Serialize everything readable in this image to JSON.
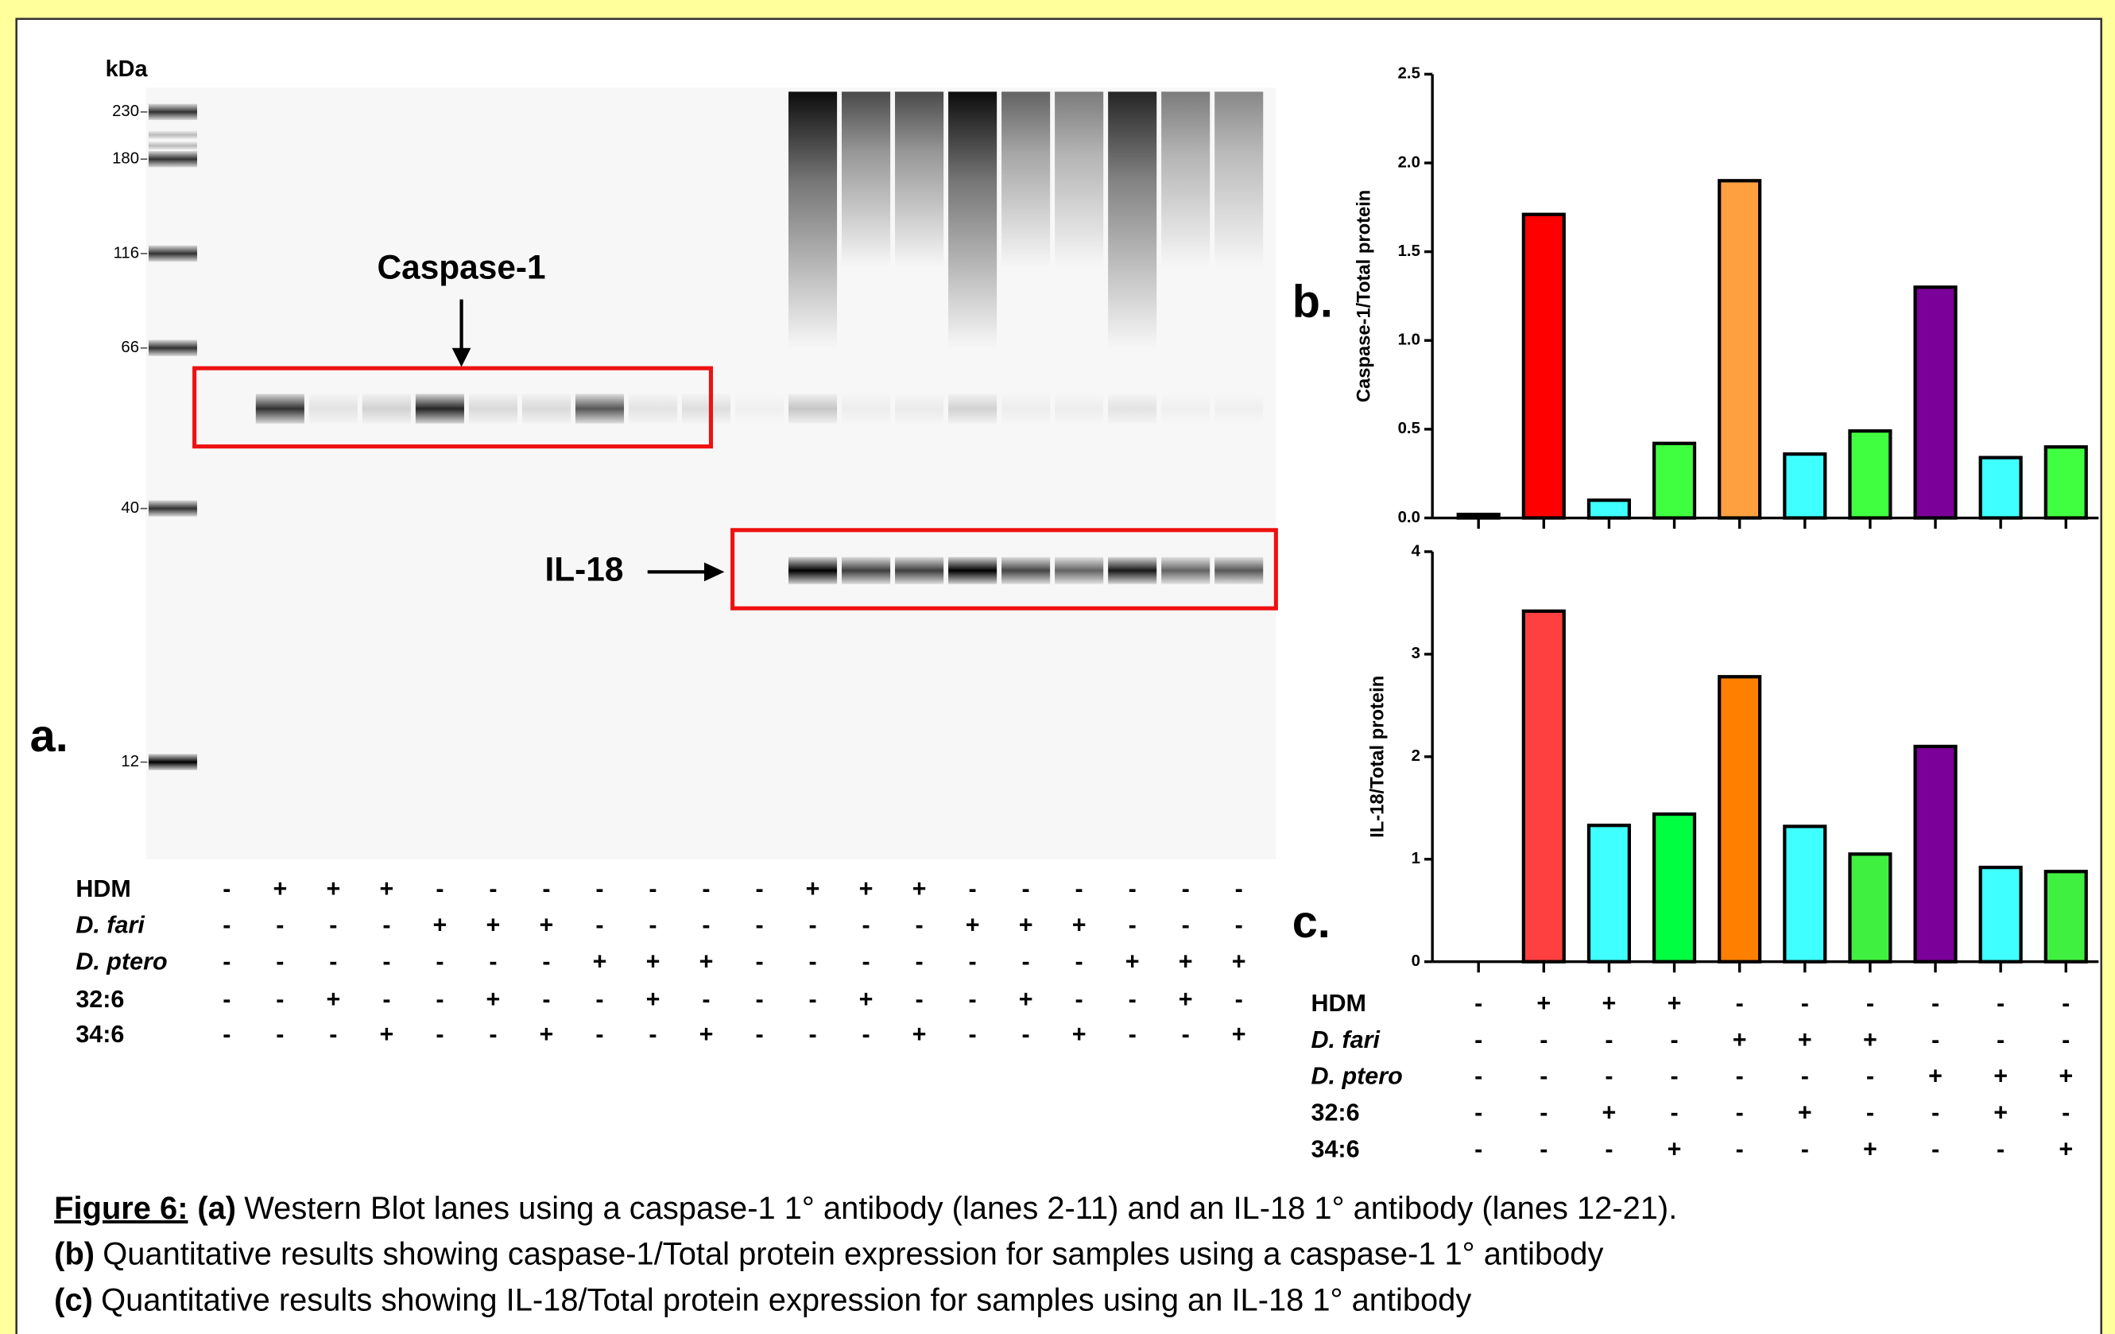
{
  "blot": {
    "unit_label": "kDa",
    "ladder": [
      "230",
      "180",
      "116",
      "66",
      "40",
      "12"
    ],
    "caspase_label": "Caspase-1",
    "il18_label": "IL-18",
    "panel_label": "a.",
    "conditions": [
      {
        "name": "HDM",
        "signs": [
          "-",
          "+",
          "+",
          "+",
          "-",
          "-",
          "-",
          "-",
          "-",
          "-",
          "-",
          "+",
          "+",
          "+",
          "-",
          "-",
          "-",
          "-",
          "-",
          "-"
        ]
      },
      {
        "name": "D. fari",
        "signs": [
          "-",
          "-",
          "-",
          "-",
          "+",
          "+",
          "+",
          "-",
          "-",
          "-",
          "-",
          "-",
          "-",
          "-",
          "+",
          "+",
          "+",
          "-",
          "-",
          "-"
        ]
      },
      {
        "name": "D. ptero",
        "signs": [
          "-",
          "-",
          "-",
          "-",
          "-",
          "-",
          "-",
          "+",
          "+",
          "+",
          "-",
          "-",
          "-",
          "-",
          "-",
          "-",
          "-",
          "+",
          "+",
          "+"
        ]
      },
      {
        "name": "32:6",
        "signs": [
          "-",
          "-",
          "+",
          "-",
          "-",
          "+",
          "-",
          "-",
          "+",
          "-",
          "-",
          "-",
          "+",
          "-",
          "-",
          "+",
          "-",
          "-",
          "+",
          "-"
        ]
      },
      {
        "name": "34:6",
        "signs": [
          "-",
          "-",
          "-",
          "+",
          "-",
          "-",
          "+",
          "-",
          "-",
          "+",
          "-",
          "-",
          "-",
          "+",
          "-",
          "-",
          "+",
          "-",
          "-",
          "+"
        ]
      }
    ]
  },
  "chart_data": [
    {
      "type": "bar",
      "panel_label": "b.",
      "y_label": "Caspase-1/Total protein",
      "categories": [
        null,
        null,
        null,
        null,
        null,
        null,
        null,
        null,
        null,
        null
      ],
      "values": [
        0.02,
        1.71,
        0.1,
        0.42,
        1.9,
        0.36,
        0.49,
        1.3,
        0.34,
        0.4
      ],
      "colors": [
        "#000000",
        "#ff0000",
        "#40ffff",
        "#40ff40",
        "#ffa040",
        "#40ffff",
        "#40ff40",
        "#7a0099",
        "#40ffff",
        "#40ff40"
      ],
      "ylim": [
        0,
        2.5
      ],
      "yticks": [
        {
          "value": 0,
          "label": "0.0"
        },
        0.5,
        {
          "value": 1,
          "label": "1.0"
        },
        1.5,
        {
          "value": 2,
          "label": "2.0"
        },
        2.5
      ]
    },
    {
      "type": "bar",
      "panel_label": "c.",
      "y_label": "IL-18/Total protein",
      "categories": [
        null,
        null,
        null,
        null,
        null,
        null,
        null,
        null,
        null,
        null
      ],
      "values": [
        0,
        3.42,
        1.33,
        1.44,
        2.78,
        1.32,
        1.05,
        2.1,
        0.92,
        0.88
      ],
      "colors": [
        "#000000",
        "#ff4040",
        "#40ffff",
        "#00ff40",
        "#ff8000",
        "#40ffff",
        "#40f040",
        "#7a0099",
        "#40ffff",
        "#40f040"
      ],
      "ylim": [
        0,
        4
      ],
      "yticks": [
        0,
        1,
        2,
        3,
        4
      ],
      "conditions": [
        {
          "name": "HDM",
          "signs": [
            "-",
            "+",
            "+",
            "+",
            "-",
            "-",
            "-",
            "-",
            "-",
            "-"
          ]
        },
        {
          "name": "D. fari",
          "signs": [
            "-",
            "-",
            "-",
            "-",
            "+",
            "+",
            "+",
            "-",
            "-",
            "-"
          ]
        },
        {
          "name": "D. ptero",
          "signs": [
            "-",
            "-",
            "-",
            "-",
            "-",
            "-",
            "-",
            "+",
            "+",
            "+"
          ]
        },
        {
          "name": "32:6",
          "signs": [
            "-",
            "-",
            "+",
            "-",
            "-",
            "+",
            "-",
            "-",
            "+",
            "-"
          ]
        },
        {
          "name": "34:6",
          "signs": [
            "-",
            "-",
            "-",
            "+",
            "-",
            "-",
            "+",
            "-",
            "-",
            "+"
          ]
        }
      ]
    }
  ],
  "caption": {
    "figure": "Figure 6:",
    "lines": [
      {
        "tag": "(a)",
        "text": "Western Blot lanes using a caspase-1 1° antibody (lanes 2-11) and an IL-18 1° antibody (lanes 12-21)."
      },
      {
        "tag": "(b)",
        "text": "Quantitative results showing caspase-1/Total protein expression for samples using a caspase-1 1° antibody"
      },
      {
        "tag": "(c)",
        "text": "Quantitative results showing IL-18/Total protein expression for samples using an IL-18 1° antibody"
      }
    ]
  }
}
